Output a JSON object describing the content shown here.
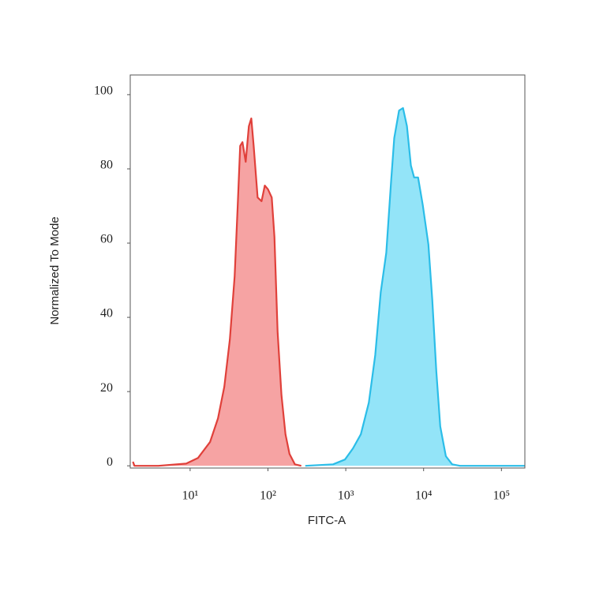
{
  "chart_data": {
    "type": "area",
    "x_label": "FITC-A",
    "y_label": "Normalized To Mode",
    "xscale": "log",
    "xlim": [
      1.7,
      200000
    ],
    "xticks": [
      {
        "value": 10,
        "label": "10¹"
      },
      {
        "value": 100,
        "label": "10²"
      },
      {
        "value": 1000,
        "label": "10³"
      },
      {
        "value": 10000,
        "label": "10⁴"
      },
      {
        "value": 100000,
        "label": "10⁵"
      }
    ],
    "ylim": [
      -0.6,
      105.3
    ],
    "yticks": [
      0,
      20,
      40,
      60,
      80,
      100
    ],
    "series": [
      {
        "color": "#e0403a",
        "fill": "#f6a3a3",
        "x": [
          1.84,
          1.93,
          3.9,
          8.9,
          12.6,
          18.0,
          22.8,
          27.5,
          32.4,
          37.3,
          40.9,
          44.0,
          47.1,
          51.8,
          56.9,
          61.1,
          65.5,
          73.6,
          82.8,
          91.0,
          100,
          112,
          121,
          133,
          149,
          168,
          189,
          222,
          268
        ],
        "values": [
          1.1,
          0,
          0,
          0.6,
          2.1,
          6.4,
          12.8,
          21.3,
          34.0,
          51.1,
          70.2,
          86.2,
          87.2,
          81.9,
          91.5,
          93.6,
          86.2,
          72.3,
          71.3,
          75.5,
          74.5,
          72.3,
          61.7,
          36.2,
          19.1,
          8.5,
          3.2,
          0.4,
          0
        ]
      },
      {
        "color": "#2bbde8",
        "fill": "#93e4f8",
        "x": [
          302,
          687,
          977,
          1236,
          1563,
          1977,
          2388,
          2812,
          3311,
          3817,
          4190,
          4831,
          5433,
          6109,
          6871,
          7551,
          8492,
          9772,
          11520,
          12940,
          14550,
          16360,
          19320,
          23280,
          29430,
          200000
        ],
        "values": [
          0,
          0.4,
          1.7,
          4.7,
          8.5,
          17.0,
          29.8,
          46.8,
          57.4,
          76.6,
          88.3,
          95.7,
          96.4,
          91.5,
          80.9,
          77.7,
          77.7,
          70.2,
          59.6,
          44.7,
          25.5,
          10.6,
          2.6,
          0.4,
          0,
          0
        ]
      }
    ]
  }
}
